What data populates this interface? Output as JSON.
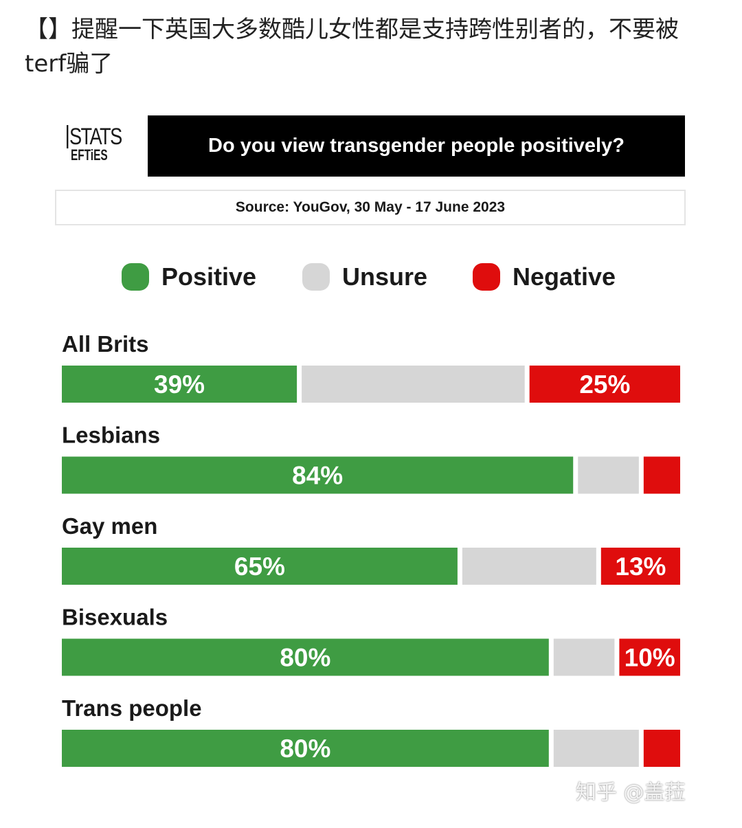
{
  "post": {
    "text": "【】提醒一下英国大多数酷儿女性都是支持跨性别者的，不要被terf骗了"
  },
  "logo": {
    "line1": "STATS",
    "line2": "EFTiES"
  },
  "watermark": {
    "text": "知乎 @盖菈"
  },
  "chart_data": {
    "type": "bar",
    "orientation": "horizontal",
    "stacked": true,
    "title": "Do you view transgender people positively?",
    "source": "Source: YouGov, 30 May - 17 June 2023",
    "categories": [
      "All Brits",
      "Lesbians",
      "Gay men",
      "Bisexuals",
      "Trans people"
    ],
    "series": [
      {
        "name": "Positive",
        "color": "#3f9c43",
        "values": [
          39,
          84,
          65,
          80,
          80
        ],
        "labels": [
          "39%",
          "84%",
          "65%",
          "80%",
          "80%"
        ]
      },
      {
        "name": "Unsure",
        "color": "#d6d6d6",
        "values": [
          37,
          10,
          22,
          10,
          14
        ],
        "labels": [
          "",
          "",
          "",
          "",
          ""
        ]
      },
      {
        "name": "Negative",
        "color": "#df0d0d",
        "values": [
          25,
          6,
          13,
          10,
          6
        ],
        "labels": [
          "25%",
          "",
          "13%",
          "10%",
          ""
        ]
      }
    ],
    "xlim": [
      0,
      100
    ],
    "legend": "top",
    "grid": false
  }
}
